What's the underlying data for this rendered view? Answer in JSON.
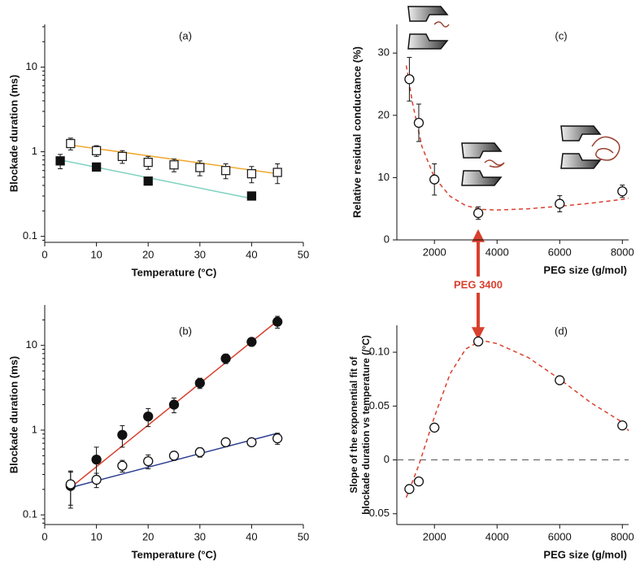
{
  "chart_data": [
    {
      "type": "scatter",
      "label": "(a)",
      "xlabel": "Temperature (°C)",
      "ylabel": "Blockade duration (ms)",
      "ylog": true,
      "xlim": [
        0,
        50
      ],
      "xticks": [
        0,
        10,
        20,
        30,
        40,
        50
      ],
      "ylim": [
        0.085,
        32
      ],
      "yticks": [
        0.1,
        1,
        10
      ],
      "series": [
        {
          "mode": "line",
          "color": "#f0a830",
          "x": [
            5,
            45
          ],
          "values": [
            1.2,
            0.55
          ]
        },
        {
          "mode": "line",
          "color": "#7fd0c0",
          "x": [
            3,
            40
          ],
          "values": [
            0.8,
            0.28
          ]
        },
        {
          "mode": "markers",
          "marker": "open-square",
          "color": "#222",
          "x": [
            5,
            10,
            15,
            20,
            25,
            30,
            35,
            40,
            45
          ],
          "values": [
            1.25,
            1.03,
            0.88,
            0.75,
            0.7,
            0.65,
            0.6,
            0.55,
            0.57
          ],
          "errors": [
            0.2,
            0.15,
            0.15,
            0.13,
            0.12,
            0.13,
            0.12,
            0.12,
            0.15
          ]
        },
        {
          "mode": "markers",
          "marker": "filled-square",
          "color": "#111",
          "x": [
            3,
            10,
            20,
            40
          ],
          "values": [
            0.78,
            0.66,
            0.45,
            0.3
          ],
          "errors": [
            0.15,
            0.03,
            0.02,
            0.02
          ]
        }
      ]
    },
    {
      "type": "scatter",
      "label": "(b)",
      "xlabel": "Temperature (°C)",
      "ylabel": "Blockade duration (ms)",
      "ylog": true,
      "xlim": [
        0,
        50
      ],
      "xticks": [
        0,
        10,
        20,
        30,
        40,
        50
      ],
      "ylim": [
        0.077,
        30
      ],
      "yticks": [
        0.1,
        1,
        10
      ],
      "series": [
        {
          "mode": "line",
          "color": "#d9402e",
          "x": [
            5,
            45
          ],
          "values": [
            0.21,
            19.5
          ]
        },
        {
          "mode": "line",
          "color": "#2c3e90",
          "x": [
            5,
            45
          ],
          "values": [
            0.21,
            0.92
          ]
        },
        {
          "mode": "markers",
          "marker": "filled-circle",
          "color": "#111",
          "x": [
            5,
            10,
            15,
            20,
            25,
            30,
            35,
            40,
            45
          ],
          "values": [
            0.22,
            0.45,
            0.88,
            1.45,
            2.0,
            3.6,
            7.0,
            11,
            19
          ],
          "errors": [
            0.1,
            0.18,
            0.25,
            0.35,
            0.4,
            0.5,
            0.9,
            1.2,
            3
          ]
        },
        {
          "mode": "markers",
          "marker": "open-circle",
          "color": "#111",
          "x": [
            5,
            10,
            15,
            20,
            25,
            30,
            35,
            40,
            45
          ],
          "values": [
            0.23,
            0.26,
            0.38,
            0.43,
            0.5,
            0.55,
            0.72,
            0.72,
            0.8
          ],
          "errors": [
            0.1,
            0.05,
            0.06,
            0.08,
            0.06,
            0.07,
            0.08,
            0.08,
            0.12
          ]
        }
      ]
    },
    {
      "type": "scatter",
      "label": "(c)",
      "xlabel": "PEG size (g/mol)",
      "ylabel": "Relative residual conductance (%)",
      "ylog": false,
      "xlim": [
        800,
        8200
      ],
      "xticks": [
        2000,
        4000,
        6000,
        8000
      ],
      "ylim": [
        0,
        34.6
      ],
      "yticks": [
        0,
        10,
        20,
        30
      ],
      "annotation": "PEG 3400",
      "series": [
        {
          "mode": "dashed",
          "color": "#d9402e",
          "x": [
            1100,
            1300,
            1600,
            2000,
            2500,
            3000,
            3500,
            4000,
            5000,
            6000,
            7000,
            8000,
            8200
          ],
          "values": [
            28,
            22,
            15,
            10,
            7,
            5.5,
            4.9,
            4.8,
            5.0,
            5.4,
            5.9,
            6.5,
            6.7
          ]
        },
        {
          "mode": "markers",
          "marker": "open-circle",
          "color": "#111",
          "x": [
            1200,
            1500,
            2000,
            3400,
            6000,
            8000
          ],
          "values": [
            25.8,
            18.8,
            9.7,
            4.3,
            5.8,
            7.8
          ],
          "errors": [
            3.5,
            3,
            2.5,
            1,
            1.3,
            1
          ]
        }
      ]
    },
    {
      "type": "scatter",
      "label": "(d)",
      "xlabel": "PEG size (g/mol)",
      "ylabel": [
        "Slope of the exponential fit of",
        "blockade duration vs temperature (/°C)"
      ],
      "ylog": false,
      "xlim": [
        800,
        8200
      ],
      "xticks": [
        2000,
        4000,
        6000,
        8000
      ],
      "ylim": [
        -0.06,
        0.125
      ],
      "yticks": [
        {
          "value": -0.05,
          "label": "-0.05"
        },
        0,
        0.05,
        {
          "value": 0.1,
          "label": "0.10"
        }
      ],
      "hline": 0,
      "series": [
        {
          "mode": "dashed",
          "color": "#d9402e",
          "x": [
            1100,
            1500,
            2000,
            2500,
            3000,
            3500,
            4000,
            5000,
            6000,
            7000,
            8000,
            8200
          ],
          "values": [
            -0.035,
            -0.005,
            0.04,
            0.08,
            0.103,
            0.111,
            0.108,
            0.095,
            0.075,
            0.053,
            0.035,
            0.027
          ]
        },
        {
          "mode": "markers",
          "marker": "open-circle",
          "color": "#111",
          "x": [
            1200,
            1500,
            2000,
            3400,
            6000,
            8000
          ],
          "values": [
            -0.027,
            -0.02,
            0.03,
            0.11,
            0.074,
            0.032
          ]
        }
      ]
    }
  ]
}
